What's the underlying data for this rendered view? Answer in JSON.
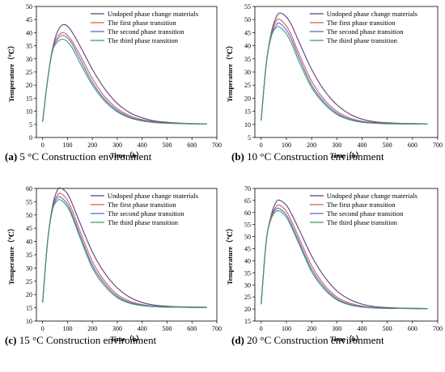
{
  "chart_data": [
    {
      "type": "line",
      "caption_letter": "(a)",
      "caption_text": " 5 °C Construction environment",
      "xlabel": "Time（h）",
      "ylabel": "Temperature（℃）",
      "xlim": [
        -25,
        700
      ],
      "ylim": [
        0,
        50
      ],
      "xticks": [
        0,
        100,
        200,
        300,
        400,
        500,
        600,
        700
      ],
      "yticks": [
        0,
        5,
        10,
        15,
        20,
        25,
        30,
        35,
        40,
        45,
        50
      ],
      "legend_position": "top-right",
      "series": [
        {
          "name": "Undoped phase change materials",
          "color": "#5b3f7f",
          "x": [
            0,
            20,
            40,
            60,
            80,
            100,
            120,
            150,
            200,
            250,
            300,
            350,
            400,
            450,
            500,
            550,
            600,
            660
          ],
          "y": [
            6,
            22,
            34,
            40.5,
            43,
            42.5,
            40,
            35,
            26,
            18.5,
            13,
            9.5,
            7.5,
            6.3,
            5.8,
            5.5,
            5.3,
            5.2
          ]
        },
        {
          "name": "The first phase transition",
          "color": "#d45a5a",
          "x": [
            0,
            20,
            40,
            60,
            80,
            100,
            120,
            150,
            200,
            250,
            300,
            350,
            400,
            450,
            500,
            550,
            600,
            660
          ],
          "y": [
            6,
            22,
            34,
            38.5,
            40,
            39,
            36.5,
            31.5,
            22.5,
            15.5,
            11,
            8.3,
            6.8,
            6,
            5.6,
            5.4,
            5.3,
            5.2
          ]
        },
        {
          "name": "The second phase transition",
          "color": "#5a62d4",
          "x": [
            0,
            20,
            40,
            60,
            80,
            100,
            120,
            150,
            200,
            250,
            300,
            350,
            400,
            450,
            500,
            550,
            600,
            660
          ],
          "y": [
            6,
            22,
            33.5,
            37.5,
            39,
            38,
            35.5,
            30,
            21,
            14.5,
            10.3,
            7.8,
            6.5,
            5.8,
            5.5,
            5.3,
            5.2,
            5.1
          ]
        },
        {
          "name": "The third phase transition",
          "color": "#3d9a6a",
          "x": [
            0,
            20,
            40,
            60,
            80,
            100,
            120,
            150,
            200,
            250,
            300,
            350,
            400,
            450,
            500,
            550,
            600,
            660
          ],
          "y": [
            6,
            22,
            33,
            36.5,
            37.5,
            36.5,
            34,
            28.5,
            20,
            13.8,
            9.8,
            7.5,
            6.3,
            5.7,
            5.4,
            5.3,
            5.2,
            5.1
          ]
        }
      ]
    },
    {
      "type": "line",
      "caption_letter": "(b)",
      "caption_text": " 10 °C Construction environment",
      "xlabel": "Time（h）",
      "ylabel": "Temperature（℃）",
      "xlim": [
        -25,
        700
      ],
      "ylim": [
        5,
        55
      ],
      "xticks": [
        0,
        100,
        200,
        300,
        400,
        500,
        600,
        700
      ],
      "yticks": [
        5,
        10,
        15,
        20,
        25,
        30,
        35,
        40,
        45,
        50,
        55
      ],
      "legend_position": "top-right",
      "series": [
        {
          "name": "Undoped phase change materials",
          "color": "#5b3f7f",
          "x": [
            0,
            20,
            40,
            60,
            75,
            100,
            120,
            150,
            200,
            250,
            300,
            350,
            400,
            450,
            500,
            550,
            600,
            660
          ],
          "y": [
            11.5,
            33,
            45,
            51,
            52.5,
            51,
            48,
            41.5,
            31,
            23,
            17.5,
            14,
            12,
            11,
            10.6,
            10.4,
            10.3,
            10.2
          ]
        },
        {
          "name": "The first phase transition",
          "color": "#d45a5a",
          "x": [
            0,
            20,
            40,
            60,
            75,
            100,
            120,
            150,
            200,
            250,
            300,
            350,
            400,
            450,
            500,
            550,
            600,
            660
          ],
          "y": [
            11.5,
            33,
            44.5,
            49.5,
            50,
            47.5,
            44,
            37,
            26.5,
            19.5,
            15,
            12.5,
            11.2,
            10.7,
            10.4,
            10.3,
            10.2,
            10.2
          ]
        },
        {
          "name": "The second phase transition",
          "color": "#5a62d4",
          "x": [
            0,
            20,
            40,
            60,
            75,
            100,
            120,
            150,
            200,
            250,
            300,
            350,
            400,
            450,
            500,
            550,
            600,
            660
          ],
          "y": [
            11.5,
            33,
            44,
            48,
            48.5,
            46,
            42.5,
            35.5,
            25,
            18.5,
            14.3,
            12,
            11,
            10.5,
            10.3,
            10.2,
            10.2,
            10.1
          ]
        },
        {
          "name": "The third phase transition",
          "color": "#3d9a6a",
          "x": [
            0,
            20,
            40,
            60,
            75,
            100,
            120,
            150,
            200,
            250,
            300,
            350,
            400,
            450,
            500,
            550,
            600,
            660
          ],
          "y": [
            11.5,
            33,
            43.5,
            47,
            47,
            44.5,
            41,
            34,
            24,
            17.8,
            13.8,
            11.8,
            10.8,
            10.4,
            10.2,
            10.2,
            10.1,
            10.1
          ]
        }
      ]
    },
    {
      "type": "line",
      "caption_letter": "(c)",
      "caption_text": " 15 °C Construction environment",
      "xlabel": "Time（h）",
      "ylabel": "Temperature（℃）",
      "xlim": [
        -25,
        700
      ],
      "ylim": [
        10,
        60
      ],
      "xticks": [
        0,
        100,
        200,
        300,
        400,
        500,
        600,
        700
      ],
      "yticks": [
        10,
        15,
        20,
        25,
        30,
        35,
        40,
        45,
        50,
        55,
        60
      ],
      "legend_position": "top-right",
      "series": [
        {
          "name": "Undoped phase change materials",
          "color": "#5b3f7f",
          "x": [
            0,
            20,
            40,
            60,
            75,
            100,
            120,
            150,
            200,
            250,
            300,
            350,
            400,
            450,
            500,
            550,
            600,
            660
          ],
          "y": [
            17,
            40,
            53.5,
            59.5,
            60,
            58,
            54,
            47,
            36,
            28,
            22.5,
            19,
            17,
            16,
            15.6,
            15.4,
            15.3,
            15.2
          ]
        },
        {
          "name": "The first phase transition",
          "color": "#d45a5a",
          "x": [
            0,
            20,
            40,
            60,
            75,
            100,
            120,
            150,
            200,
            250,
            300,
            350,
            400,
            450,
            500,
            550,
            600,
            660
          ],
          "y": [
            17,
            40,
            53,
            57.5,
            58,
            55.5,
            51.5,
            44,
            32.5,
            25,
            20,
            17.5,
            16.2,
            15.6,
            15.4,
            15.3,
            15.2,
            15.2
          ]
        },
        {
          "name": "The second phase transition",
          "color": "#5a62d4",
          "x": [
            0,
            20,
            40,
            60,
            75,
            100,
            120,
            150,
            200,
            250,
            300,
            350,
            400,
            450,
            500,
            550,
            600,
            660
          ],
          "y": [
            17,
            40,
            52.5,
            56.5,
            56.5,
            54,
            50,
            42.5,
            31,
            24,
            19.3,
            17,
            16,
            15.5,
            15.3,
            15.2,
            15.2,
            15.1
          ]
        },
        {
          "name": "The third phase transition",
          "color": "#3d9a6a",
          "x": [
            0,
            20,
            40,
            60,
            75,
            100,
            120,
            150,
            200,
            250,
            300,
            350,
            400,
            450,
            500,
            550,
            600,
            660
          ],
          "y": [
            17,
            40,
            52,
            55.5,
            55.5,
            53,
            49,
            41.5,
            30,
            23.2,
            18.8,
            16.7,
            15.8,
            15.4,
            15.2,
            15.2,
            15.1,
            15.1
          ]
        }
      ]
    },
    {
      "type": "line",
      "caption_letter": "(d)",
      "caption_text": " 20 °C Construction environment",
      "xlabel": "Time（h）",
      "ylabel": "Temperature（℃）",
      "xlim": [
        -25,
        700
      ],
      "ylim": [
        15,
        70
      ],
      "xticks": [
        0,
        100,
        200,
        300,
        400,
        500,
        600,
        700
      ],
      "yticks": [
        15,
        20,
        25,
        30,
        35,
        40,
        45,
        50,
        55,
        60,
        65,
        70
      ],
      "legend_position": "top-right",
      "series": [
        {
          "name": "Undoped phase change materials",
          "color": "#5b3f7f",
          "x": [
            0,
            20,
            40,
            60,
            75,
            100,
            120,
            150,
            200,
            250,
            300,
            350,
            400,
            450,
            500,
            550,
            600,
            660
          ],
          "y": [
            22,
            48,
            59,
            64.5,
            65,
            63,
            59.5,
            53,
            42,
            33.5,
            27.5,
            24,
            22,
            21,
            20.6,
            20.4,
            20.3,
            20.2
          ]
        },
        {
          "name": "The first phase transition",
          "color": "#d45a5a",
          "x": [
            0,
            20,
            40,
            60,
            75,
            100,
            120,
            150,
            200,
            250,
            300,
            350,
            400,
            450,
            500,
            550,
            600,
            660
          ],
          "y": [
            22,
            48,
            58.5,
            62.5,
            63,
            60.5,
            56.5,
            49.5,
            38,
            30,
            25,
            22.5,
            21.2,
            20.6,
            20.4,
            20.3,
            20.2,
            20.2
          ]
        },
        {
          "name": "The second phase transition",
          "color": "#5a62d4",
          "x": [
            0,
            20,
            40,
            60,
            75,
            100,
            120,
            150,
            200,
            250,
            300,
            350,
            400,
            450,
            500,
            550,
            600,
            660
          ],
          "y": [
            22,
            48,
            58,
            61.5,
            61.5,
            59,
            55,
            48,
            36.5,
            29,
            24.3,
            22,
            21,
            20.5,
            20.3,
            20.2,
            20.2,
            20.1
          ]
        },
        {
          "name": "The third phase transition",
          "color": "#3d9a6a",
          "x": [
            0,
            20,
            40,
            60,
            75,
            100,
            120,
            150,
            200,
            250,
            300,
            350,
            400,
            450,
            500,
            550,
            600,
            660
          ],
          "y": [
            22,
            48,
            57.5,
            60.5,
            60.5,
            58,
            54,
            47,
            35.5,
            28.2,
            23.8,
            21.7,
            20.8,
            20.4,
            20.2,
            20.2,
            20.1,
            20.1
          ]
        }
      ]
    }
  ]
}
